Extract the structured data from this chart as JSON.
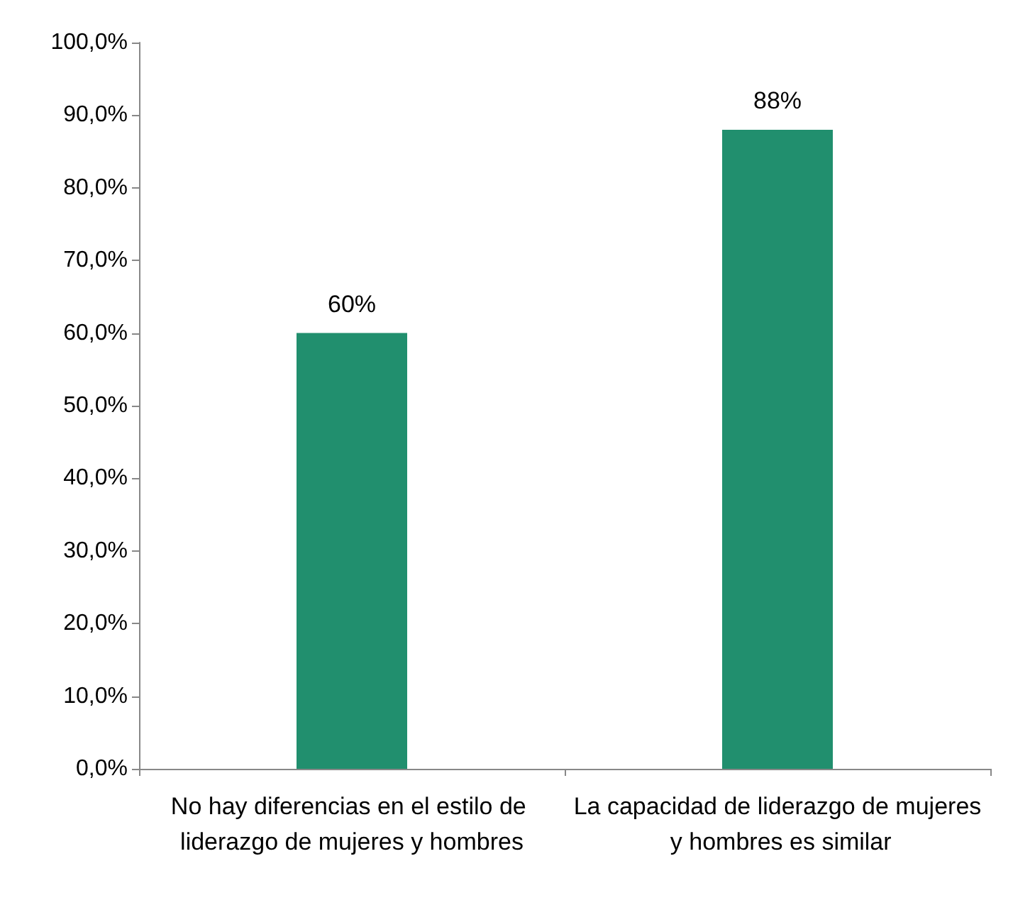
{
  "chart_data": {
    "type": "bar",
    "categories": [
      "No hay diferencias en el estilo de liderazgo de mujeres y hombres",
      "La capacidad de liderazgo de mujeres y hombres es similar"
    ],
    "values": [
      60,
      88
    ],
    "color": "#218f6e",
    "value_labels": [
      "60%",
      "88%"
    ],
    "ylim": [
      0,
      100
    ],
    "yticks": [
      {
        "value": 0,
        "label": "0,0%"
      },
      {
        "value": 10,
        "label": "10,0%"
      },
      {
        "value": 20,
        "label": "20,0%"
      },
      {
        "value": 30,
        "label": "30,0%"
      },
      {
        "value": 40,
        "label": "40,0%"
      },
      {
        "value": 50,
        "label": "50,0%"
      },
      {
        "value": 60,
        "label": "60,0%"
      },
      {
        "value": 70,
        "label": "70,0%"
      },
      {
        "value": 80,
        "label": "80,0%"
      },
      {
        "value": 90,
        "label": "90,0%"
      },
      {
        "value": 100,
        "label": "100,0%"
      }
    ],
    "grid": false
  }
}
